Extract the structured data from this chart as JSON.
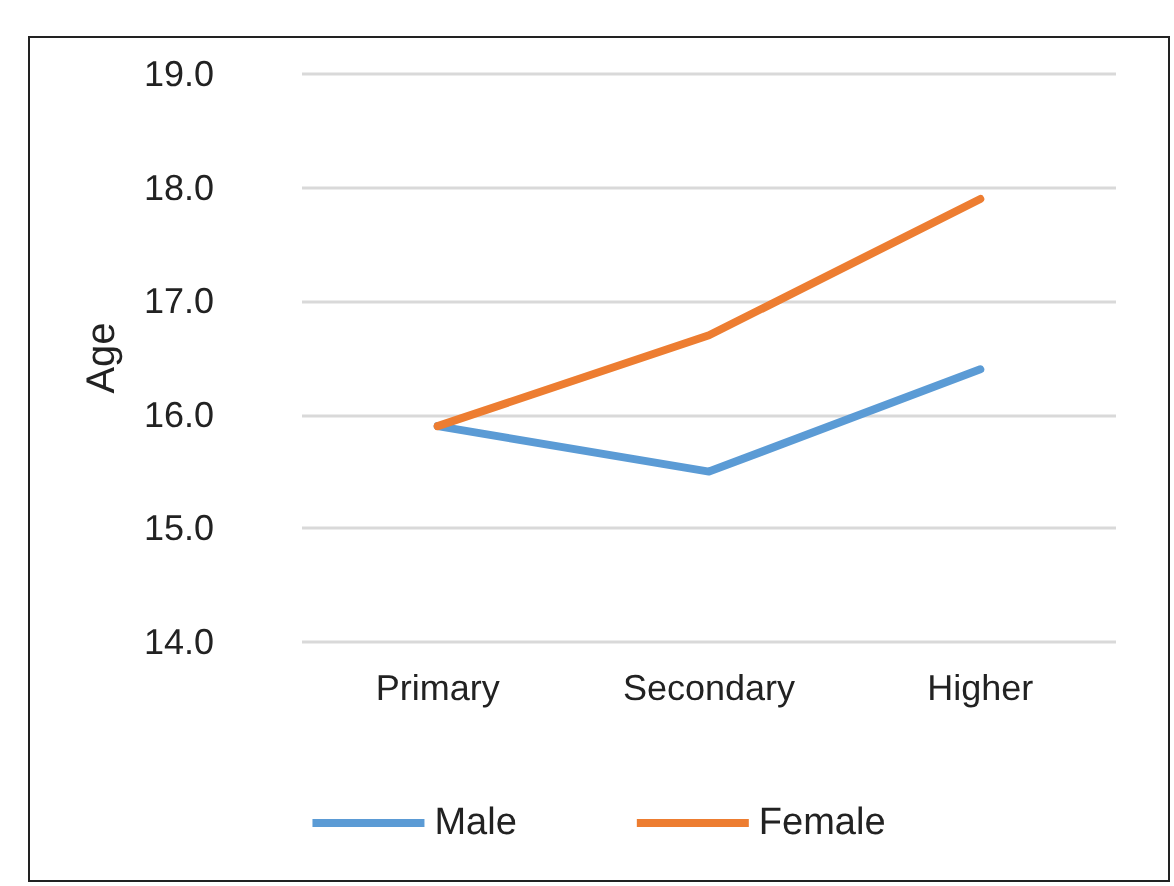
{
  "chart_data": {
    "type": "line",
    "ylabel": "Age",
    "categories": [
      "Primary",
      "Secondary",
      "Higher"
    ],
    "series": [
      {
        "name": "Male",
        "color": "#5b9bd5",
        "values": [
          15.9,
          15.5,
          16.4
        ]
      },
      {
        "name": "Female",
        "color": "#ed7d31",
        "values": [
          15.9,
          16.7,
          17.9
        ]
      }
    ],
    "ylim": [
      14,
      19
    ],
    "yticks": [
      {
        "value": 14,
        "label": "14.0"
      },
      {
        "value": 15,
        "label": "15.0"
      },
      {
        "value": 16,
        "label": "16.0"
      },
      {
        "value": 17,
        "label": "17.0"
      },
      {
        "value": 18,
        "label": "18.0"
      },
      {
        "value": 19,
        "label": "19.0"
      }
    ],
    "grid": "y",
    "legend": "bottom",
    "marker": "none",
    "line_style": "solid"
  }
}
